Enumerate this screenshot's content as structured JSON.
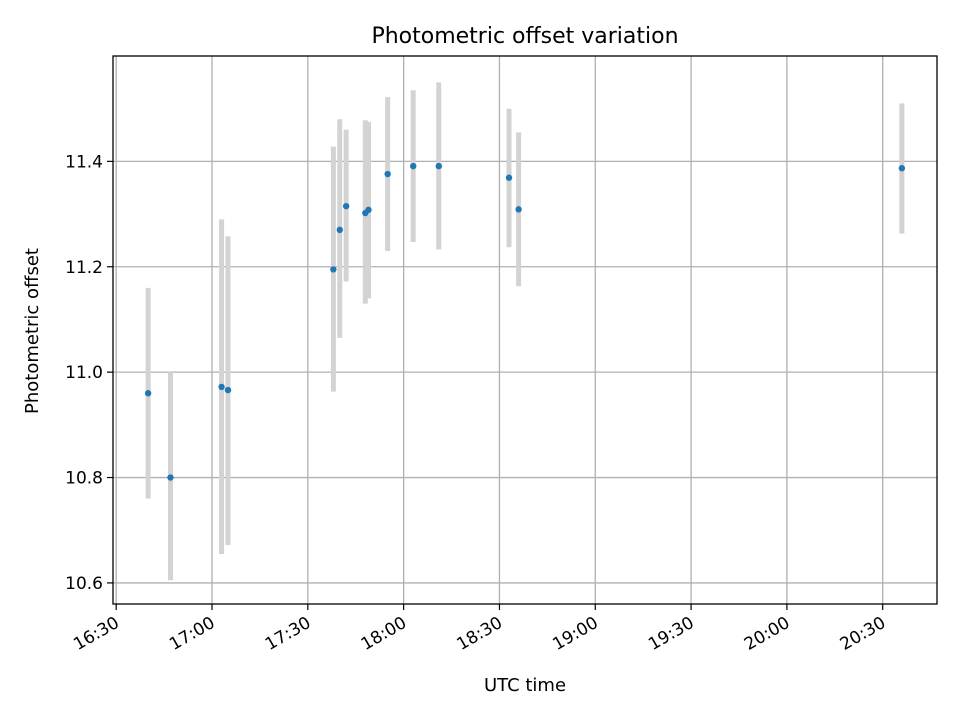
{
  "chart_data": {
    "type": "scatter",
    "title": "Photometric offset variation",
    "xlabel": "UTC time",
    "ylabel": "Photometric offset",
    "x_ticks": [
      "16:30",
      "17:00",
      "17:30",
      "18:00",
      "18:30",
      "19:00",
      "19:30",
      "20:00",
      "20:30"
    ],
    "x_tick_minutes": [
      990,
      1020,
      1050,
      1080,
      1110,
      1140,
      1170,
      1200,
      1230
    ],
    "xlim": [
      "16:29",
      "20:47"
    ],
    "y_ticks": [
      "10.6",
      "10.8",
      "11.0",
      "11.2",
      "11.4"
    ],
    "y_tick_values": [
      10.6,
      10.8,
      11.0,
      11.2,
      11.4
    ],
    "ylim": [
      10.56,
      11.6
    ],
    "grid": true,
    "colors": {
      "point": "#1f77b4",
      "errorbar": "#d3d3d3"
    },
    "points": [
      {
        "x": "16:40",
        "y": 10.96,
        "ylow": 10.76,
        "yhigh": 11.16
      },
      {
        "x": "16:47",
        "y": 10.8,
        "ylow": 10.605,
        "yhigh": 11.0
      },
      {
        "x": "17:03",
        "y": 10.972,
        "ylow": 10.655,
        "yhigh": 11.29
      },
      {
        "x": "17:05",
        "y": 10.966,
        "ylow": 10.672,
        "yhigh": 11.258
      },
      {
        "x": "17:38",
        "y": 11.195,
        "ylow": 10.963,
        "yhigh": 11.428
      },
      {
        "x": "17:40",
        "y": 11.27,
        "ylow": 11.065,
        "yhigh": 11.48
      },
      {
        "x": "17:42",
        "y": 11.315,
        "ylow": 11.172,
        "yhigh": 11.46
      },
      {
        "x": "17:48",
        "y": 11.302,
        "ylow": 11.13,
        "yhigh": 11.478
      },
      {
        "x": "17:49",
        "y": 11.308,
        "ylow": 11.14,
        "yhigh": 11.475
      },
      {
        "x": "17:55",
        "y": 11.376,
        "ylow": 11.23,
        "yhigh": 11.522
      },
      {
        "x": "18:03",
        "y": 11.391,
        "ylow": 11.247,
        "yhigh": 11.535
      },
      {
        "x": "18:11",
        "y": 11.391,
        "ylow": 11.233,
        "yhigh": 11.55
      },
      {
        "x": "18:33",
        "y": 11.369,
        "ylow": 11.237,
        "yhigh": 11.5
      },
      {
        "x": "18:36",
        "y": 11.309,
        "ylow": 11.163,
        "yhigh": 11.455
      },
      {
        "x": "20:36",
        "y": 11.387,
        "ylow": 11.263,
        "yhigh": 11.51
      }
    ]
  }
}
